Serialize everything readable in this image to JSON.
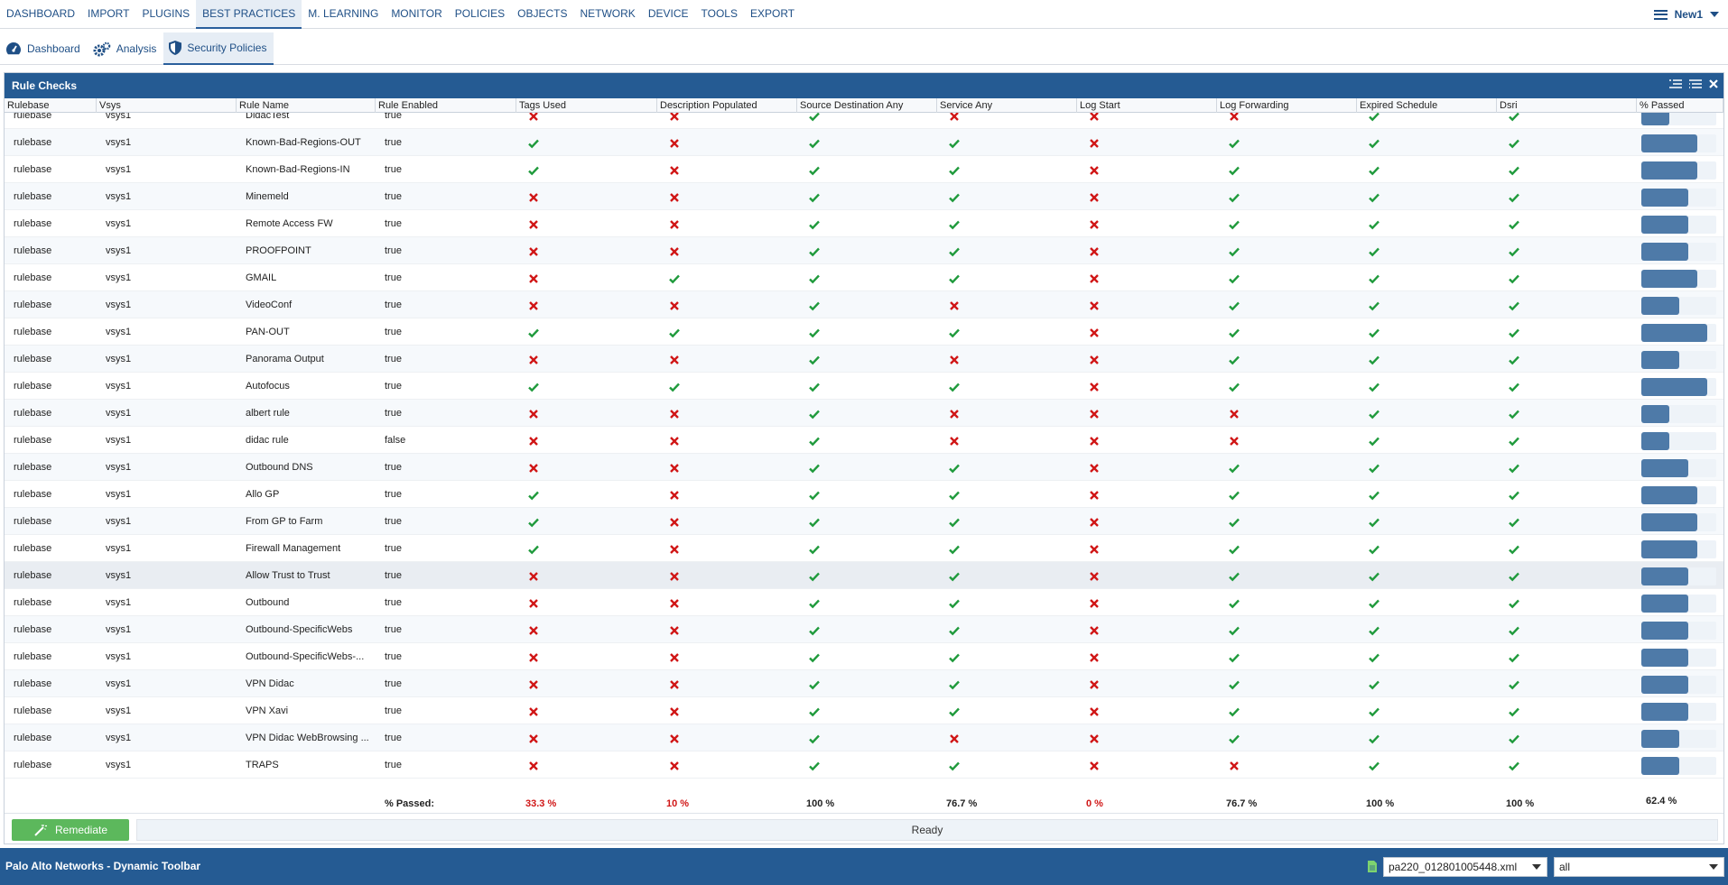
{
  "nav": {
    "items": [
      "DASHBOARD",
      "IMPORT",
      "PLUGINS",
      "BEST PRACTICES",
      "M. LEARNING",
      "MONITOR",
      "POLICIES",
      "OBJECTS",
      "NETWORK",
      "DEVICE",
      "TOOLS",
      "EXPORT"
    ],
    "active_index": 3,
    "user_menu": "New1"
  },
  "subtabs": {
    "items": [
      {
        "label": "Dashboard",
        "icon": "speedometer-icon"
      },
      {
        "label": "Analysis",
        "icon": "gears-icon"
      },
      {
        "label": "Security Policies",
        "icon": "shield-icon"
      }
    ],
    "active_index": 2
  },
  "panel": {
    "title": "Rule Checks",
    "columns": [
      "Rulebase",
      "Vsys",
      "Rule Name",
      "Rule Enabled",
      "Tags Used",
      "Description Populated",
      "Source Destination Any",
      "Service Any",
      "Log Start",
      "Log Forwarding",
      "Expired Schedule",
      "Dsri",
      "% Passed"
    ],
    "rows": [
      {
        "rulebase": "rulebase",
        "vsys": "vsys1",
        "name": "DidacTest",
        "enabled": "true",
        "checks": [
          0,
          0,
          1,
          0,
          0,
          0,
          1,
          1
        ],
        "passed": 0.375
      },
      {
        "rulebase": "rulebase",
        "vsys": "vsys1",
        "name": "Known-Bad-Regions-OUT",
        "enabled": "true",
        "checks": [
          1,
          0,
          1,
          1,
          0,
          1,
          1,
          1
        ],
        "passed": 0.75
      },
      {
        "rulebase": "rulebase",
        "vsys": "vsys1",
        "name": "Known-Bad-Regions-IN",
        "enabled": "true",
        "checks": [
          1,
          0,
          1,
          1,
          0,
          1,
          1,
          1
        ],
        "passed": 0.75
      },
      {
        "rulebase": "rulebase",
        "vsys": "vsys1",
        "name": "Minemeld",
        "enabled": "true",
        "checks": [
          0,
          0,
          1,
          1,
          0,
          1,
          1,
          1
        ],
        "passed": 0.625
      },
      {
        "rulebase": "rulebase",
        "vsys": "vsys1",
        "name": "Remote Access FW",
        "enabled": "true",
        "checks": [
          0,
          0,
          1,
          1,
          0,
          1,
          1,
          1
        ],
        "passed": 0.625
      },
      {
        "rulebase": "rulebase",
        "vsys": "vsys1",
        "name": "PROOFPOINT",
        "enabled": "true",
        "checks": [
          0,
          0,
          1,
          1,
          0,
          1,
          1,
          1
        ],
        "passed": 0.625
      },
      {
        "rulebase": "rulebase",
        "vsys": "vsys1",
        "name": "GMAIL",
        "enabled": "true",
        "checks": [
          0,
          1,
          1,
          1,
          0,
          1,
          1,
          1
        ],
        "passed": 0.75
      },
      {
        "rulebase": "rulebase",
        "vsys": "vsys1",
        "name": "VideoConf",
        "enabled": "true",
        "checks": [
          0,
          0,
          1,
          0,
          0,
          1,
          1,
          1
        ],
        "passed": 0.5
      },
      {
        "rulebase": "rulebase",
        "vsys": "vsys1",
        "name": "PAN-OUT",
        "enabled": "true",
        "checks": [
          1,
          1,
          1,
          1,
          0,
          1,
          1,
          1
        ],
        "passed": 0.875
      },
      {
        "rulebase": "rulebase",
        "vsys": "vsys1",
        "name": "Panorama Output",
        "enabled": "true",
        "checks": [
          0,
          0,
          1,
          0,
          0,
          1,
          1,
          1
        ],
        "passed": 0.5
      },
      {
        "rulebase": "rulebase",
        "vsys": "vsys1",
        "name": "Autofocus",
        "enabled": "true",
        "checks": [
          1,
          1,
          1,
          1,
          0,
          1,
          1,
          1
        ],
        "passed": 0.875
      },
      {
        "rulebase": "rulebase",
        "vsys": "vsys1",
        "name": "albert rule",
        "enabled": "true",
        "checks": [
          0,
          0,
          1,
          0,
          0,
          0,
          1,
          1
        ],
        "passed": 0.375
      },
      {
        "rulebase": "rulebase",
        "vsys": "vsys1",
        "name": "didac rule",
        "enabled": "false",
        "checks": [
          0,
          0,
          1,
          0,
          0,
          0,
          1,
          1
        ],
        "passed": 0.375
      },
      {
        "rulebase": "rulebase",
        "vsys": "vsys1",
        "name": "Outbound DNS",
        "enabled": "true",
        "checks": [
          0,
          0,
          1,
          1,
          0,
          1,
          1,
          1
        ],
        "passed": 0.625
      },
      {
        "rulebase": "rulebase",
        "vsys": "vsys1",
        "name": "Allo GP",
        "enabled": "true",
        "checks": [
          1,
          0,
          1,
          1,
          0,
          1,
          1,
          1
        ],
        "passed": 0.75
      },
      {
        "rulebase": "rulebase",
        "vsys": "vsys1",
        "name": "From GP to Farm",
        "enabled": "true",
        "checks": [
          1,
          0,
          1,
          1,
          0,
          1,
          1,
          1
        ],
        "passed": 0.75
      },
      {
        "rulebase": "rulebase",
        "vsys": "vsys1",
        "name": "Firewall Management",
        "enabled": "true",
        "checks": [
          1,
          0,
          1,
          1,
          0,
          1,
          1,
          1
        ],
        "passed": 0.75
      },
      {
        "rulebase": "rulebase",
        "vsys": "vsys1",
        "name": "Allow Trust to Trust",
        "enabled": "true",
        "checks": [
          0,
          0,
          1,
          1,
          0,
          1,
          1,
          1
        ],
        "passed": 0.625,
        "selected": true
      },
      {
        "rulebase": "rulebase",
        "vsys": "vsys1",
        "name": "Outbound",
        "enabled": "true",
        "checks": [
          0,
          0,
          1,
          1,
          0,
          1,
          1,
          1
        ],
        "passed": 0.625
      },
      {
        "rulebase": "rulebase",
        "vsys": "vsys1",
        "name": "Outbound-SpecificWebs",
        "enabled": "true",
        "checks": [
          0,
          0,
          1,
          1,
          0,
          1,
          1,
          1
        ],
        "passed": 0.625
      },
      {
        "rulebase": "rulebase",
        "vsys": "vsys1",
        "name": "Outbound-SpecificWebs-...",
        "enabled": "true",
        "checks": [
          0,
          0,
          1,
          1,
          0,
          1,
          1,
          1
        ],
        "passed": 0.625
      },
      {
        "rulebase": "rulebase",
        "vsys": "vsys1",
        "name": "VPN Didac",
        "enabled": "true",
        "checks": [
          0,
          0,
          1,
          1,
          0,
          1,
          1,
          1
        ],
        "passed": 0.625
      },
      {
        "rulebase": "rulebase",
        "vsys": "vsys1",
        "name": "VPN Xavi",
        "enabled": "true",
        "checks": [
          0,
          0,
          1,
          1,
          0,
          1,
          1,
          1
        ],
        "passed": 0.625
      },
      {
        "rulebase": "rulebase",
        "vsys": "vsys1",
        "name": "VPN Didac WebBrowsing ...",
        "enabled": "true",
        "checks": [
          0,
          0,
          1,
          0,
          0,
          1,
          1,
          1
        ],
        "passed": 0.5
      },
      {
        "rulebase": "rulebase",
        "vsys": "vsys1",
        "name": "TRAPS",
        "enabled": "true",
        "checks": [
          0,
          0,
          1,
          1,
          0,
          0,
          1,
          1
        ],
        "passed": 0.5
      }
    ],
    "summary": {
      "label": "% Passed:",
      "values": [
        "33.3 %",
        "10 %",
        "100 %",
        "76.7 %",
        "0 %",
        "76.7 %",
        "100 %",
        "100 %",
        "62.4 %"
      ],
      "red": [
        true,
        true,
        false,
        false,
        true,
        false,
        false,
        false,
        false
      ]
    },
    "remediate_label": "Remediate",
    "status_text": "Ready"
  },
  "footer": {
    "title": "Palo Alto Networks - Dynamic Toolbar",
    "file_select": "pa220_012801005448.xml",
    "filter_select": "all"
  },
  "colors": {
    "brand": "#255b93",
    "pass": "#1f9a3c",
    "fail": "#d01616",
    "bar": "#4e7aa8",
    "remediate": "#5cb85c"
  }
}
